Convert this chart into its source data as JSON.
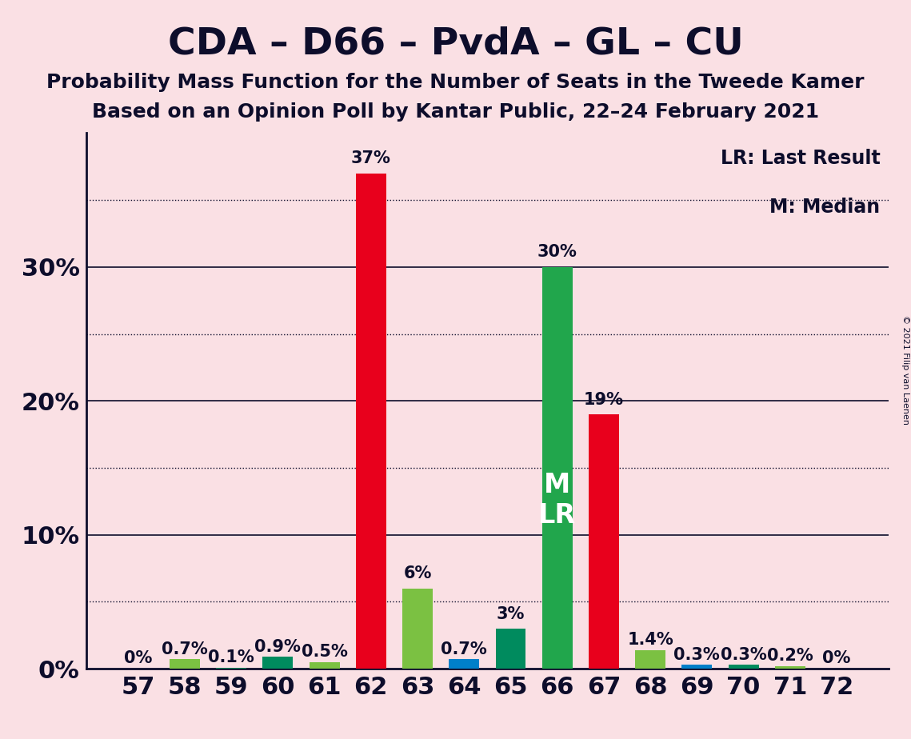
{
  "title": "CDA – D66 – PvdA – GL – CU",
  "subtitle1": "Probability Mass Function for the Number of Seats in the Tweede Kamer",
  "subtitle2": "Based on an Opinion Poll by Kantar Public, 22–24 February 2021",
  "copyright": "© 2021 Filip van Laenen",
  "legend_lr": "LR: Last Result",
  "legend_m": "M: Median",
  "seats": [
    57,
    58,
    59,
    60,
    61,
    62,
    63,
    64,
    65,
    66,
    67,
    68,
    69,
    70,
    71,
    72
  ],
  "values": [
    0.0,
    0.7,
    0.1,
    0.9,
    0.5,
    37.0,
    6.0,
    0.7,
    3.0,
    30.0,
    19.0,
    1.4,
    0.3,
    0.3,
    0.2,
    0.0
  ],
  "bar_colors": [
    "#E8001C",
    "#7BC142",
    "#008B5E",
    "#008B5E",
    "#7BC142",
    "#E8001C",
    "#7BC142",
    "#0080C9",
    "#008B5E",
    "#21A64C",
    "#E8001C",
    "#7BC142",
    "#0080C9",
    "#008B5E",
    "#7BC142",
    "#E8001C"
  ],
  "label_values": [
    "0%",
    "0.7%",
    "0.1%",
    "0.9%",
    "0.5%",
    "37%",
    "6%",
    "0.7%",
    "3%",
    "30%",
    "19%",
    "1.4%",
    "0.3%",
    "0.3%",
    "0.2%",
    "0%"
  ],
  "median_seat": 66,
  "background_color": "#FAE0E4",
  "bar_width": 0.65,
  "ylim_max": 40.0,
  "solid_gridlines": [
    10,
    20,
    30
  ],
  "dotted_gridlines": [
    5,
    15,
    25,
    35
  ],
  "ytick_positions": [
    0,
    10,
    20,
    30
  ],
  "ytick_labels": [
    "0%",
    "10%",
    "20%",
    "30%"
  ],
  "title_fontsize": 34,
  "subtitle_fontsize": 18,
  "tick_fontsize": 22,
  "label_fontsize": 15,
  "legend_fontsize": 17,
  "ml_fontsize": 24
}
